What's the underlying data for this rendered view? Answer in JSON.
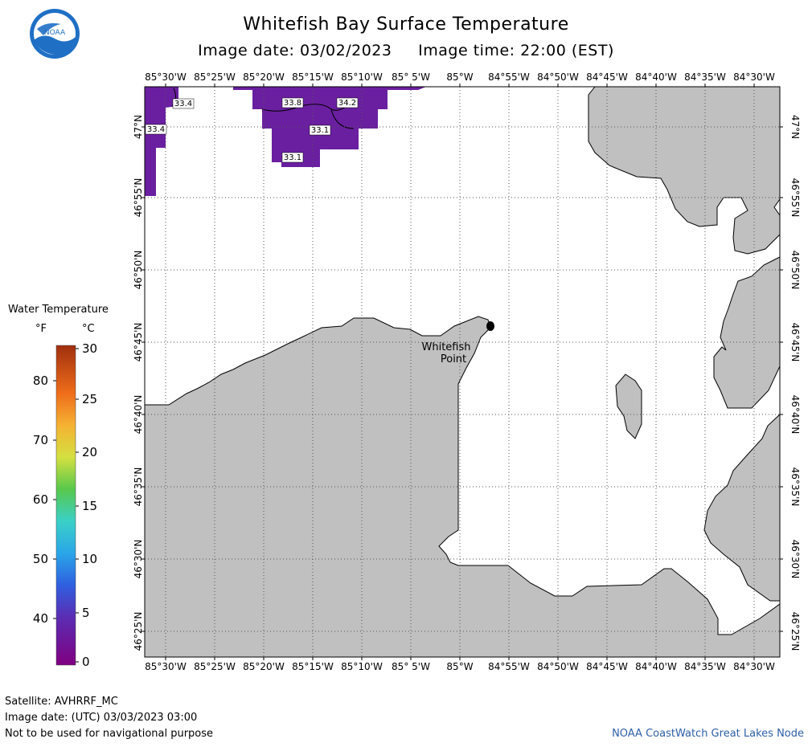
{
  "header": {
    "title": "Whitefish Bay Surface Temperature",
    "subtitle": "Image date: 03/02/2023     Image time: 22:00 (EST)",
    "logo_text": "NOAA"
  },
  "map": {
    "lon_labels": [
      "85°30'W",
      "85°25'W",
      "85°20'W",
      "85°15'W",
      "85°10'W",
      "85° 5'W",
      "85°W",
      "84°55'W",
      "84°50'W",
      "84°45'W",
      "84°40'W",
      "84°35'W",
      "84°30'W"
    ],
    "lat_labels": [
      "47°N",
      "46°55'N",
      "46°50'N",
      "46°45'N",
      "46°40'N",
      "46°35'N",
      "46°30'N",
      "46°25'N"
    ],
    "place_label_line1": "Whitefish",
    "place_label_line2": "Point",
    "temp_labels": [
      "33.4",
      "33.4",
      "33.8",
      "34.2",
      "33.1",
      "33.1"
    ],
    "colors": {
      "water": "#ffffff",
      "land": "#c0c0c0",
      "temperature_fill": "#6a1fa0"
    }
  },
  "legend": {
    "title": "Water Temperature",
    "unit_f": "°F",
    "unit_c": "°C",
    "f_ticks": [
      "80",
      "70",
      "60",
      "50",
      "40"
    ],
    "c_ticks": [
      "30",
      "25",
      "20",
      "15",
      "10",
      "5",
      "0"
    ]
  },
  "footer": {
    "satellite": "Satellite: AVHRRF_MC",
    "image_date_utc": "Image date: (UTC) 03/03/2023  03:00",
    "disclaimer": "Not to be used for navigational purpose",
    "credit": "NOAA CoastWatch Great Lakes Node"
  }
}
